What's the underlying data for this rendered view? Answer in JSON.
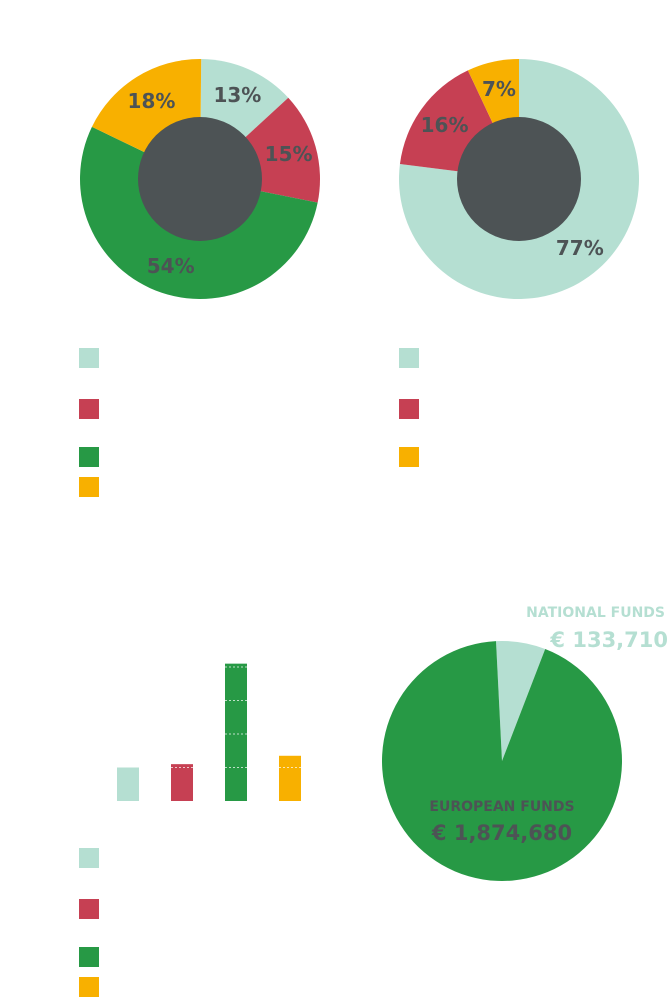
{
  "colors": {
    "mint": "#b5dfd2",
    "red": "#c64053",
    "green": "#279945",
    "yellow": "#f8b000",
    "hole": "#4d5355",
    "label": "#4d5355"
  },
  "chart_data": [
    {
      "type": "pie",
      "variant": "donut",
      "slices": [
        {
          "color_key": "mint",
          "value": 13,
          "label": "13%"
        },
        {
          "color_key": "red",
          "value": 15,
          "label": "15%"
        },
        {
          "color_key": "green",
          "value": 54,
          "label": "54%"
        },
        {
          "color_key": "yellow",
          "value": 18,
          "label": "18%"
        }
      ],
      "legend": [
        "mint",
        "red",
        "green",
        "yellow"
      ]
    },
    {
      "type": "pie",
      "variant": "donut",
      "slices": [
        {
          "color_key": "mint",
          "value": 77,
          "label": "77%"
        },
        {
          "color_key": "red",
          "value": 16,
          "label": "16%"
        },
        {
          "color_key": "yellow",
          "value": 7,
          "label": "7%"
        }
      ],
      "legend": [
        "mint",
        "red",
        "yellow"
      ]
    },
    {
      "type": "bar",
      "note": "no axis or value labels printed",
      "bars": [
        {
          "color_key": "mint",
          "value": 1.0
        },
        {
          "color_key": "red",
          "value": 1.1
        },
        {
          "color_key": "green",
          "value": 4.1
        },
        {
          "color_key": "yellow",
          "value": 1.35
        }
      ],
      "legend": [
        "mint",
        "red",
        "green",
        "yellow"
      ]
    },
    {
      "type": "pie",
      "slices": [
        {
          "color_key": "mint",
          "name": "NATIONAL FUNDS",
          "value": 133710,
          "value_label": "€ 133,710"
        },
        {
          "color_key": "green",
          "name": "EUROPEAN FUNDS",
          "value": 1874680,
          "value_label": "€ 1,874,680"
        }
      ]
    }
  ],
  "funds": {
    "national_title": "NATIONAL FUNDS",
    "national_amount": "€ 133,710",
    "european_title": "EUROPEAN FUNDS",
    "european_amount": "€ 1,874,680"
  }
}
